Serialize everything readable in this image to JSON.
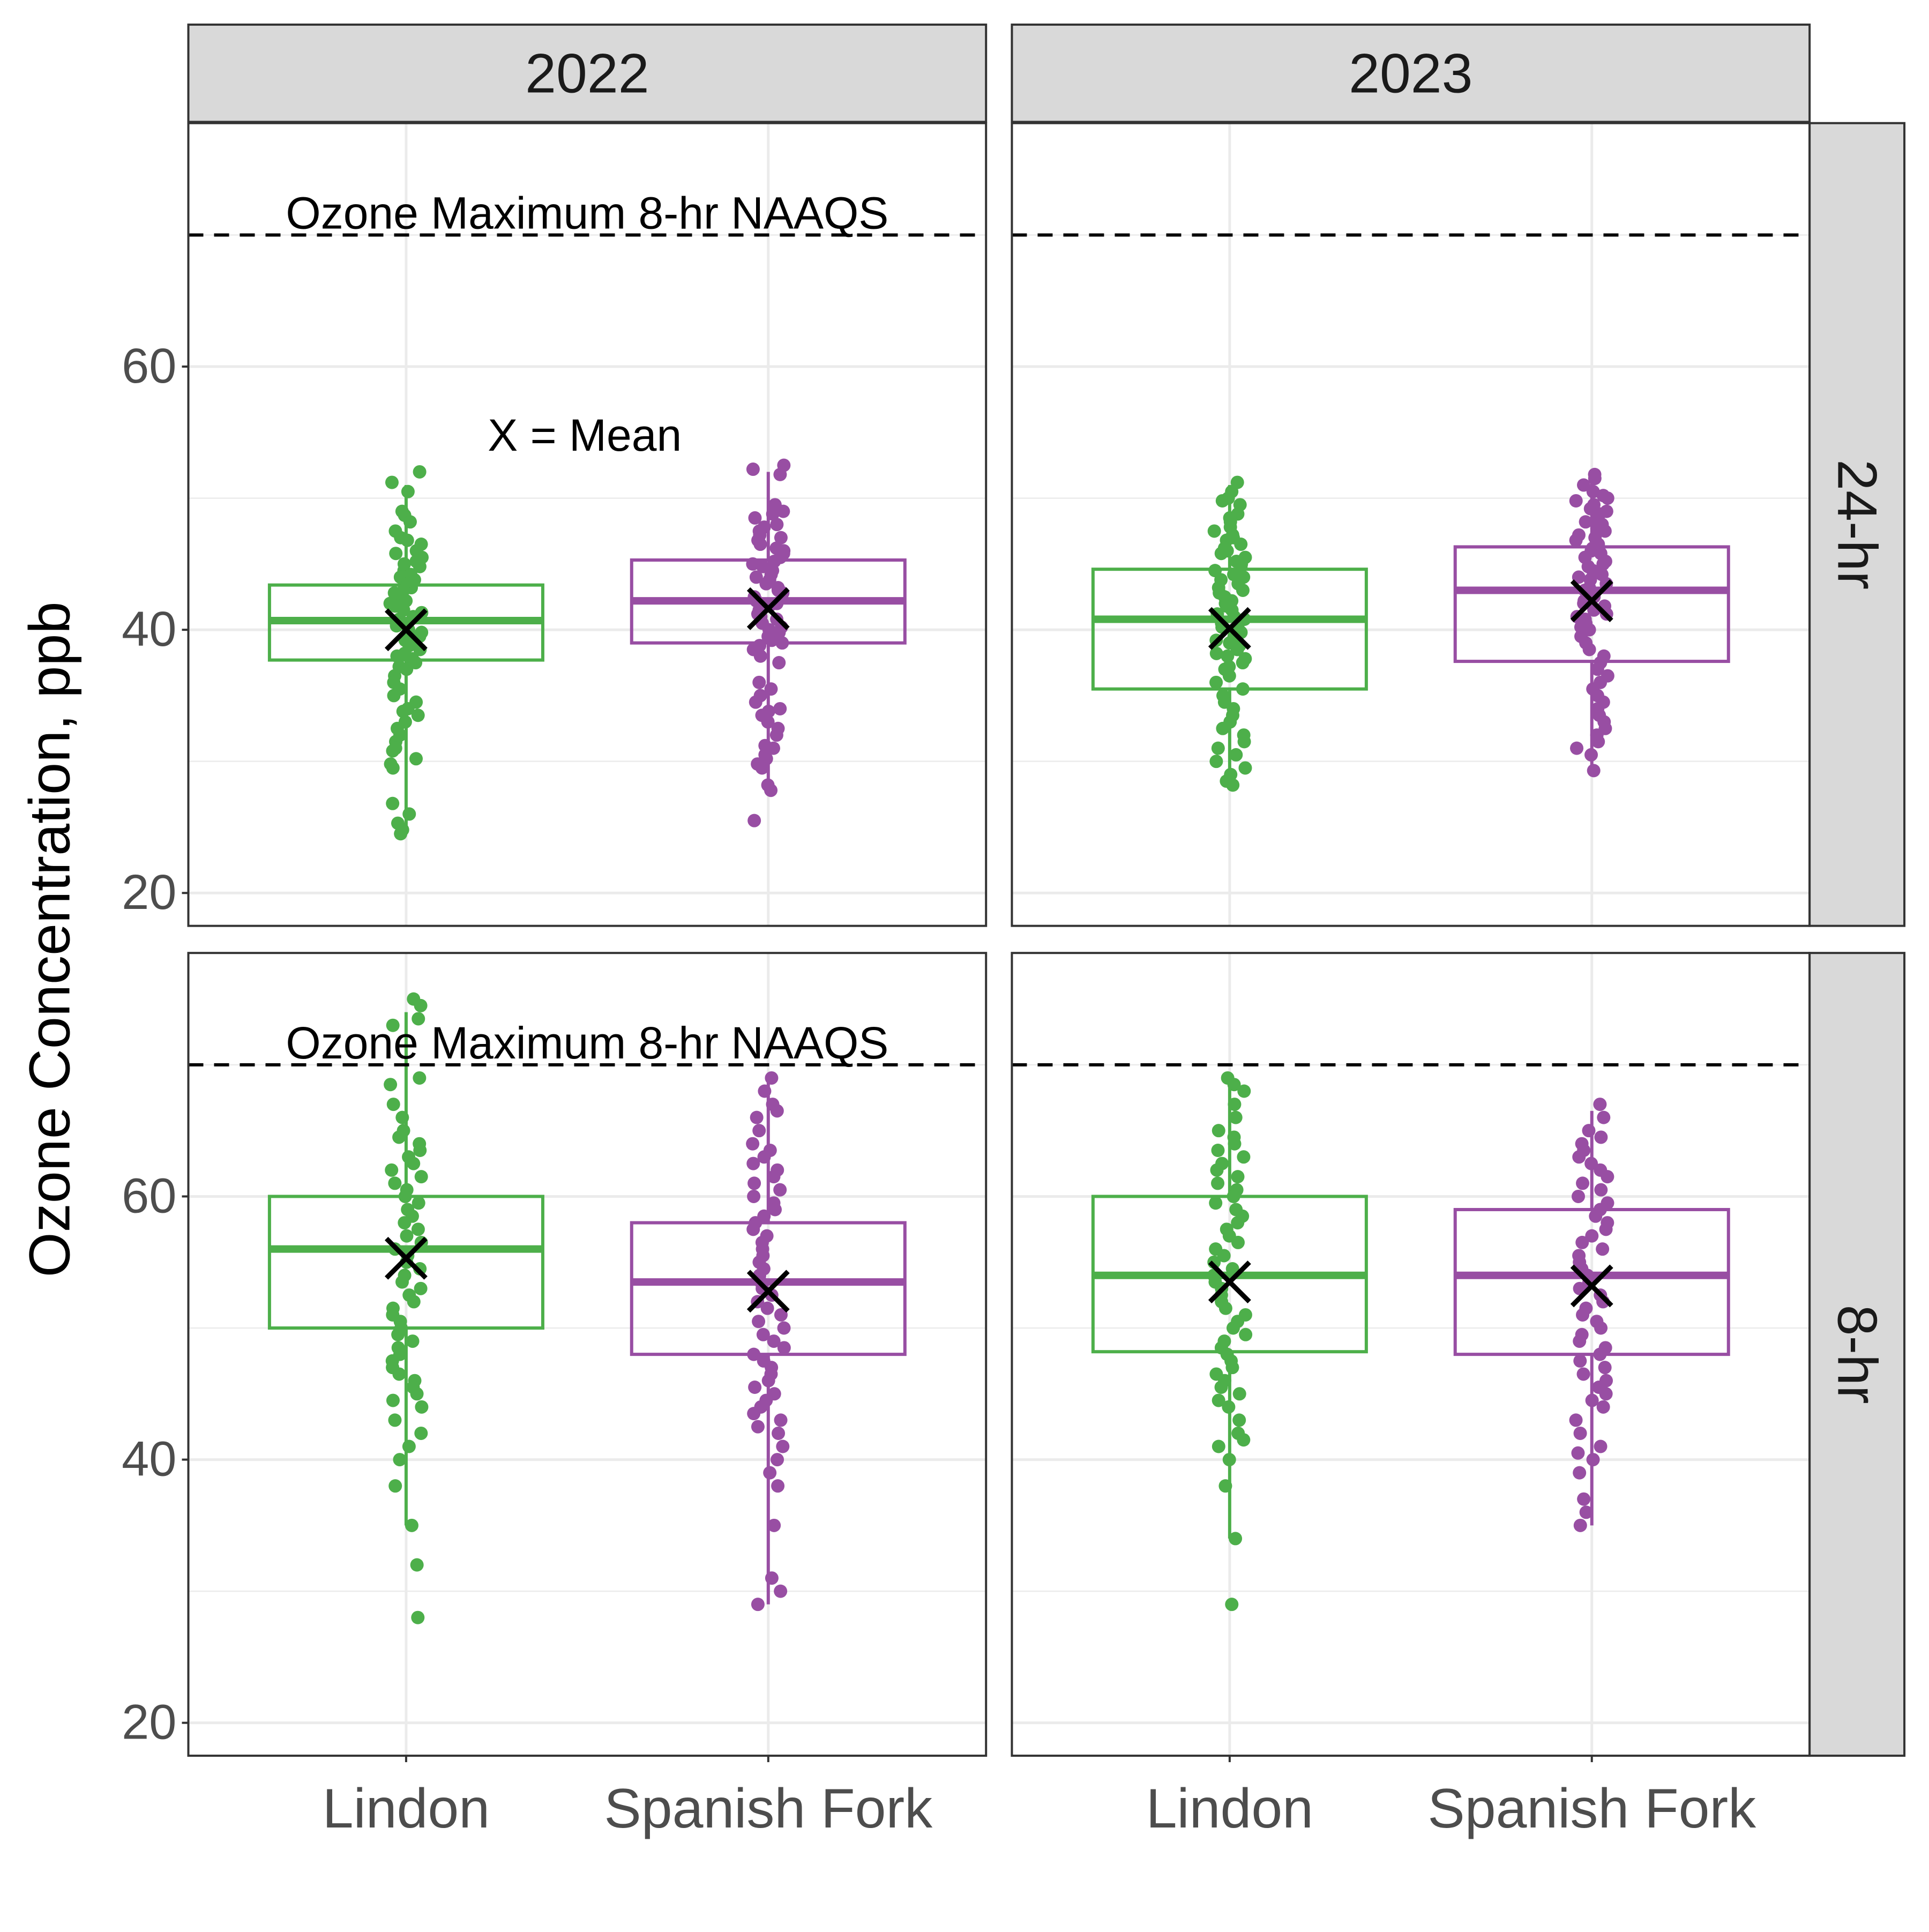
{
  "chart_data": {
    "type": "boxplot",
    "y_axis_label": "Ozone Concentration, ppb",
    "y_ticks": [
      20,
      40,
      60
    ],
    "ylim": [
      17.5,
      78.5
    ],
    "categories": [
      "Lindon",
      "Spanish Fork"
    ],
    "columns": [
      "2022",
      "2023"
    ],
    "rows": [
      "24-hr",
      "8-hr"
    ],
    "reference_line": {
      "value": 70,
      "label": "Ozone Maximum 8-hr NAAQS",
      "style": "dashed"
    },
    "mean_note": "X = Mean",
    "colors": {
      "Lindon": "#4daf4a",
      "Spanish Fork": "#984ea3",
      "mean_marker": "#000000",
      "strip": "#d9d9d9",
      "grid": "#ebebeb"
    },
    "panels": [
      {
        "column": "2022",
        "row": "24-hr",
        "boxes": [
          {
            "category": "Lindon",
            "min": 24.5,
            "q1": 37.7,
            "median": 40.7,
            "q3": 43.4,
            "max": 51,
            "mean": 40
          },
          {
            "category": "Spanish Fork",
            "min": 27.5,
            "q1": 39,
            "median": 42.2,
            "q3": 45.3,
            "max": 52,
            "mean": 41.6
          }
        ],
        "points": {
          "Lindon": [
            52,
            51.2,
            50.5,
            49,
            48.7,
            48.2,
            47.5,
            47,
            46.8,
            46.5,
            46,
            45.8,
            45.5,
            45.2,
            45,
            44.8,
            44.5,
            44.2,
            44,
            43.8,
            43.5,
            43.2,
            43,
            42.8,
            42.5,
            42.2,
            42,
            41.8,
            41.5,
            41.3,
            41,
            40.8,
            40.5,
            40.3,
            40,
            39.8,
            39.5,
            39.2,
            39,
            38.8,
            38.5,
            38.2,
            38,
            37.8,
            37.5,
            37.2,
            37,
            36.5,
            36,
            35.5,
            35,
            34.5,
            34,
            33.8,
            33.5,
            33,
            32.5,
            32,
            31.5,
            31,
            30.8,
            30.2,
            29.8,
            29.5,
            26.8,
            26,
            25.3,
            24.8,
            24.5
          ],
          "Spanish Fork": [
            52.5,
            52.2,
            51.8,
            49.5,
            49,
            48.8,
            48.5,
            48,
            47.8,
            47.5,
            47.2,
            47,
            46.8,
            46.5,
            46.2,
            46,
            45.8,
            45.5,
            45.2,
            45,
            44.8,
            44.5,
            44.2,
            44,
            43.8,
            43.5,
            43.2,
            43,
            42.8,
            42.5,
            42.2,
            42,
            41.8,
            41.5,
            41.2,
            41,
            40.8,
            40.5,
            40.2,
            40,
            39.8,
            39.5,
            39.2,
            39,
            38.8,
            38.5,
            38,
            37.5,
            36,
            35.5,
            35,
            34.5,
            34,
            33.8,
            33.5,
            33,
            32.5,
            32,
            31.2,
            31,
            30.5,
            30.2,
            29.8,
            29.5,
            28.2,
            27.8,
            25.5
          ]
        }
      },
      {
        "column": "2023",
        "row": "24-hr",
        "boxes": [
          {
            "category": "Lindon",
            "min": 28.2,
            "q1": 35.5,
            "median": 40.8,
            "q3": 44.6,
            "max": 51,
            "mean": 40.1
          },
          {
            "category": "Spanish Fork",
            "min": 29.3,
            "q1": 37.6,
            "median": 43,
            "q3": 46.3,
            "max": 51.5,
            "mean": 42.2
          }
        ],
        "points": {
          "Lindon": [
            51.2,
            50.5,
            50,
            49.8,
            49.5,
            48.8,
            48.5,
            48.2,
            47.8,
            47.5,
            47.2,
            47,
            46.8,
            46.5,
            46.2,
            46,
            45.8,
            45.5,
            45.2,
            45,
            44.8,
            44.5,
            44.2,
            44,
            43.8,
            43.5,
            43.2,
            43,
            42.8,
            42.5,
            42.2,
            42,
            41.8,
            41.5,
            41.2,
            41,
            40.8,
            40.5,
            40.2,
            40,
            39.8,
            39.5,
            39.2,
            39,
            38.8,
            38.5,
            38.2,
            38,
            37.8,
            37.5,
            37.2,
            37,
            36.5,
            36,
            35.5,
            35,
            34.5,
            34,
            33.5,
            33,
            32.5,
            32,
            31.5,
            31,
            30.5,
            30,
            29.5,
            29,
            28.5,
            28.2
          ],
          "Spanish Fork": [
            51.8,
            51.5,
            51,
            50.5,
            50.2,
            50,
            49.8,
            49.5,
            49.2,
            49,
            48.8,
            48.5,
            48.2,
            48,
            47.8,
            47.5,
            47.2,
            47,
            46.8,
            46.5,
            46.2,
            46,
            45.8,
            45.5,
            45.2,
            45,
            44.8,
            44.5,
            44.2,
            44,
            43.8,
            43.5,
            43.2,
            43,
            42.8,
            42.5,
            42.2,
            42,
            41.8,
            41.5,
            41.2,
            41,
            40.8,
            40.5,
            40.2,
            40,
            39.5,
            39,
            38.5,
            38,
            37.5,
            37,
            36.5,
            36,
            35.5,
            35,
            34.5,
            34,
            33.5,
            33,
            32.5,
            32,
            31.5,
            31,
            30.5,
            29.3
          ]
        }
      },
      {
        "column": "2022",
        "row": "8-hr",
        "boxes": [
          {
            "category": "Lindon",
            "min": 35,
            "q1": 50,
            "median": 56,
            "q3": 60,
            "max": 74,
            "mean": 55.3
          },
          {
            "category": "Spanish Fork",
            "min": 29,
            "q1": 48,
            "median": 53.5,
            "q3": 58,
            "max": 69,
            "mean": 52.8
          }
        ],
        "points": {
          "Lindon": [
            75,
            74.5,
            73.5,
            73,
            69,
            68.5,
            67,
            66,
            65,
            64.5,
            64,
            63.5,
            63,
            62.5,
            62,
            61.5,
            61,
            60.5,
            60,
            59.5,
            59,
            58.5,
            58,
            57.5,
            57,
            56.5,
            56,
            55.5,
            55,
            54.5,
            54,
            53.5,
            53,
            52.5,
            52,
            51.5,
            51,
            50.5,
            50,
            49.5,
            49,
            48.5,
            48,
            47.5,
            47,
            46.5,
            46,
            45.5,
            45,
            44.5,
            44,
            43,
            42,
            41,
            40,
            38,
            35,
            32,
            28
          ],
          "Spanish Fork": [
            69,
            68,
            67,
            66.5,
            66,
            65,
            64,
            63.5,
            63,
            62.5,
            62,
            61.5,
            61,
            60.5,
            60,
            59.5,
            59,
            58.5,
            58,
            57.5,
            57,
            56.5,
            56,
            55.5,
            55,
            54.5,
            54,
            53.5,
            53,
            52.5,
            52,
            51.5,
            51,
            50.5,
            50,
            49.5,
            49,
            48.5,
            48,
            47.5,
            47,
            46.5,
            46,
            45.5,
            45,
            44.5,
            44,
            43.5,
            43,
            42.5,
            42,
            41,
            40,
            39,
            38,
            35,
            31,
            30,
            29
          ]
        }
      },
      {
        "column": "2023",
        "row": "8-hr",
        "boxes": [
          {
            "category": "Lindon",
            "min": 34,
            "q1": 48.2,
            "median": 54,
            "q3": 60,
            "max": 69,
            "mean": 53.5
          },
          {
            "category": "Spanish Fork",
            "min": 35,
            "q1": 48,
            "median": 54,
            "q3": 59,
            "max": 66.5,
            "mean": 53.2
          }
        ],
        "points": {
          "Lindon": [
            69,
            68.5,
            68,
            67,
            66,
            65,
            64.5,
            64,
            63.5,
            63,
            62.5,
            62,
            61.5,
            61,
            60.5,
            60,
            59.5,
            59,
            58.5,
            58,
            57.5,
            57,
            56.5,
            56,
            55.5,
            55,
            54.5,
            54,
            53.5,
            53,
            52.5,
            52,
            51.5,
            51,
            50.5,
            50,
            49.5,
            49,
            48.5,
            48,
            47.5,
            47,
            46.5,
            46,
            45.5,
            45,
            44.5,
            44,
            43,
            42,
            41.5,
            41,
            40,
            38,
            34,
            29
          ],
          "Spanish Fork": [
            67,
            66,
            65,
            64.5,
            64,
            63.5,
            63,
            62.5,
            62,
            61.5,
            61,
            60.5,
            60,
            59.5,
            59,
            58.5,
            58,
            57.5,
            57,
            56.5,
            56,
            55.5,
            55,
            54.5,
            54,
            53.5,
            53,
            52.5,
            52,
            51.5,
            51,
            50.5,
            50,
            49.5,
            49,
            48.5,
            48,
            47.5,
            47,
            46.5,
            46,
            45.5,
            45,
            44.5,
            44,
            43,
            42,
            41,
            40.5,
            40,
            39,
            37,
            36,
            35
          ]
        }
      }
    ]
  }
}
